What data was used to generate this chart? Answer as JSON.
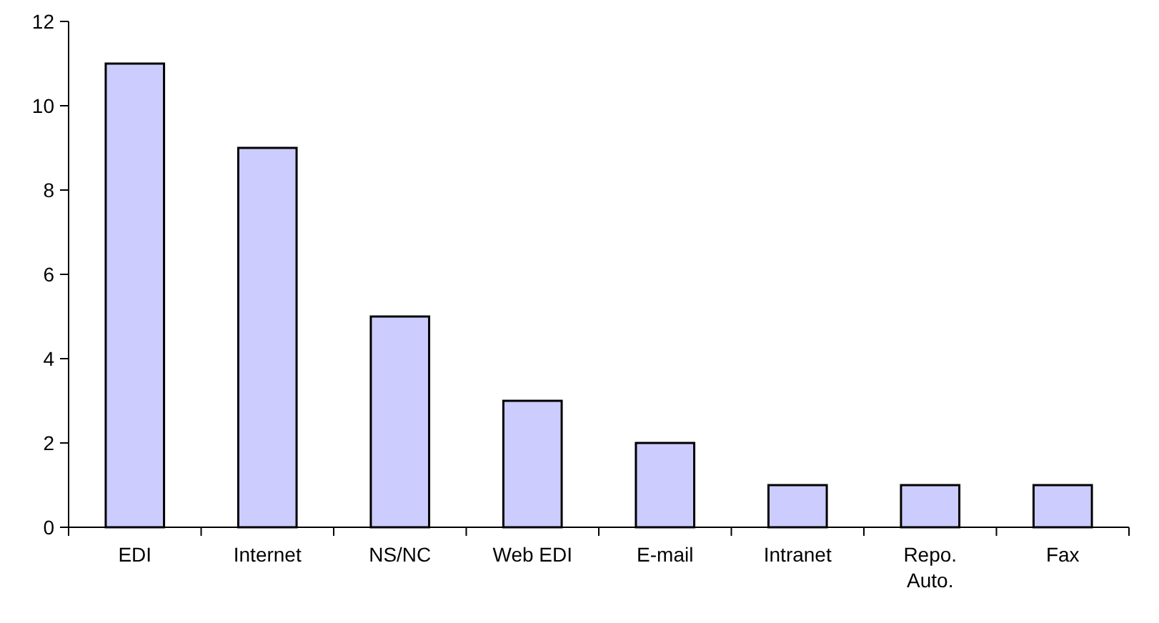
{
  "chart_data": {
    "type": "bar",
    "categories": [
      "EDI",
      "Internet",
      "NS/NC",
      "Web EDI",
      "E-mail",
      "Intranet",
      "Repo. Auto.",
      "Fax"
    ],
    "values": [
      11,
      9,
      5,
      3,
      2,
      1,
      1,
      1
    ],
    "color": "#ccccff",
    "ylim": [
      0,
      12
    ],
    "yticks": [
      0,
      2,
      4,
      6,
      8,
      10,
      12
    ]
  }
}
